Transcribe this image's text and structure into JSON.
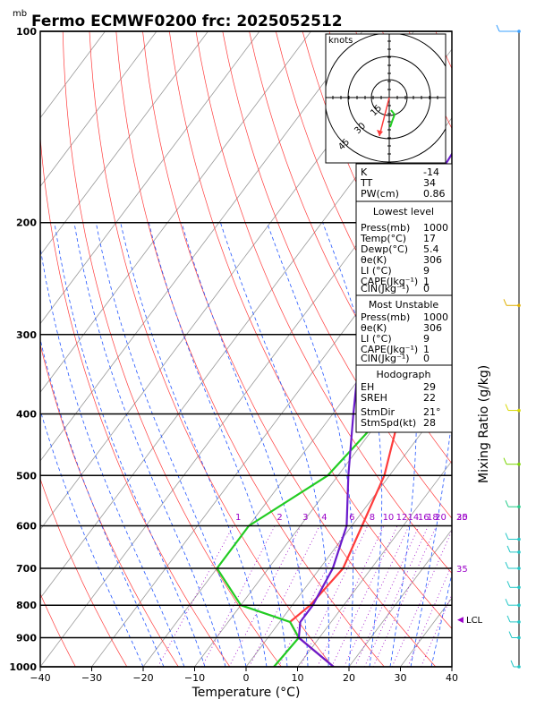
{
  "chart_data": {
    "type": "line",
    "title": "Fermo ECMWF0200  frc: 2025052512",
    "pressure_unit": "mb",
    "xlabel": "Temperature (°C)",
    "xlim": [
      -40,
      40
    ],
    "x_ticks": [
      -40,
      -30,
      -20,
      -10,
      0,
      10,
      20,
      30,
      40
    ],
    "p_ticks": [
      100,
      200,
      300,
      400,
      500,
      600,
      700,
      800,
      900,
      1000
    ],
    "mixing_ratio_label": "Mixing Ratio  (g/kg)",
    "mixing_ratio_values": [
      "1",
      "2",
      "3",
      "4",
      "6",
      "8",
      "10",
      "12",
      "14",
      "16",
      "18",
      "20",
      "25",
      "30",
      "35"
    ],
    "series": [
      {
        "color": "#ff3b3b",
        "points": [
          [
            100,
            15
          ],
          [
            150,
            -2
          ],
          [
            200,
            -15
          ],
          [
            250,
            -22
          ],
          [
            300,
            -16
          ],
          [
            400,
            -7
          ],
          [
            500,
            -1
          ],
          [
            600,
            2
          ],
          [
            700,
            4.5
          ],
          [
            800,
            3.5
          ],
          [
            850,
            2
          ],
          [
            900,
            6
          ],
          [
            1000,
            17
          ]
        ]
      },
      {
        "color": "#22cc22",
        "points": [
          [
            100,
            -13
          ],
          [
            200,
            -13
          ],
          [
            300,
            -11
          ],
          [
            400,
            -10
          ],
          [
            500,
            -12
          ],
          [
            600,
            -20
          ],
          [
            700,
            -20
          ],
          [
            800,
            -10
          ],
          [
            850,
            2
          ],
          [
            900,
            6
          ],
          [
            1000,
            5.4
          ]
        ]
      },
      {
        "color": "#6a1bcc",
        "points": [
          [
            150,
            -35
          ],
          [
            200,
            -33
          ],
          [
            300,
            -26
          ],
          [
            400,
            -16
          ],
          [
            500,
            -8
          ],
          [
            600,
            -1
          ],
          [
            700,
            2.5
          ],
          [
            800,
            4
          ],
          [
            850,
            4
          ],
          [
            900,
            6
          ],
          [
            1000,
            17
          ]
        ]
      }
    ],
    "lcl_label": "LCL",
    "lcl_pressure": 848,
    "hodograph_units": "knots",
    "hodograph_rings": [
      "15",
      "30",
      "45"
    ]
  },
  "indices": [
    {
      "label": "K",
      "value": "-14"
    },
    {
      "label": "TT",
      "value": "34"
    },
    {
      "label": "PW(cm)",
      "value": "0.86"
    }
  ],
  "lowest_level": {
    "title": "Lowest level",
    "rows": [
      {
        "label": "Press(mb)",
        "value": "1000"
      },
      {
        "label": "Temp(°C)",
        "value": "17"
      },
      {
        "label": "Dewp(°C)",
        "value": "5.4"
      },
      {
        "label": "θe(K)",
        "value": "306"
      },
      {
        "label": "LI (°C)",
        "value": "9"
      },
      {
        "label": "CAPE(Jkg⁻¹)",
        "value": "1"
      },
      {
        "label": "CIN(Jkg⁻¹)",
        "value": "0"
      }
    ]
  },
  "most_unstable": {
    "title": "Most Unstable",
    "rows": [
      {
        "label": "Press(mb)",
        "value": "1000"
      },
      {
        "label": "θe(K)",
        "value": "306"
      },
      {
        "label": "LI (°C)",
        "value": "9"
      },
      {
        "label": "CAPE(Jkg⁻¹)",
        "value": "1"
      },
      {
        "label": "CIN(Jkg⁻¹)",
        "value": "0"
      }
    ]
  },
  "hodograph_panel": {
    "title": "Hodograph",
    "rows": [
      {
        "label": "EH",
        "value": "29"
      },
      {
        "label": "SREH",
        "value": "22"
      },
      {
        "label": "StmDir",
        "value": "21°"
      },
      {
        "label": "StmSpd(kt)",
        "value": "28"
      }
    ]
  },
  "colors": {
    "temperature": "#ff3b3b",
    "dewpoint": "#22cc22",
    "parcel": "#6a1bcc",
    "dry_adiabat": "#ff3b3b",
    "moist_adiabat": "#2255ff",
    "isotherm": "#999999",
    "mixing_ratio": "#9a00c8",
    "wind_axis": "#3aa0ff"
  }
}
